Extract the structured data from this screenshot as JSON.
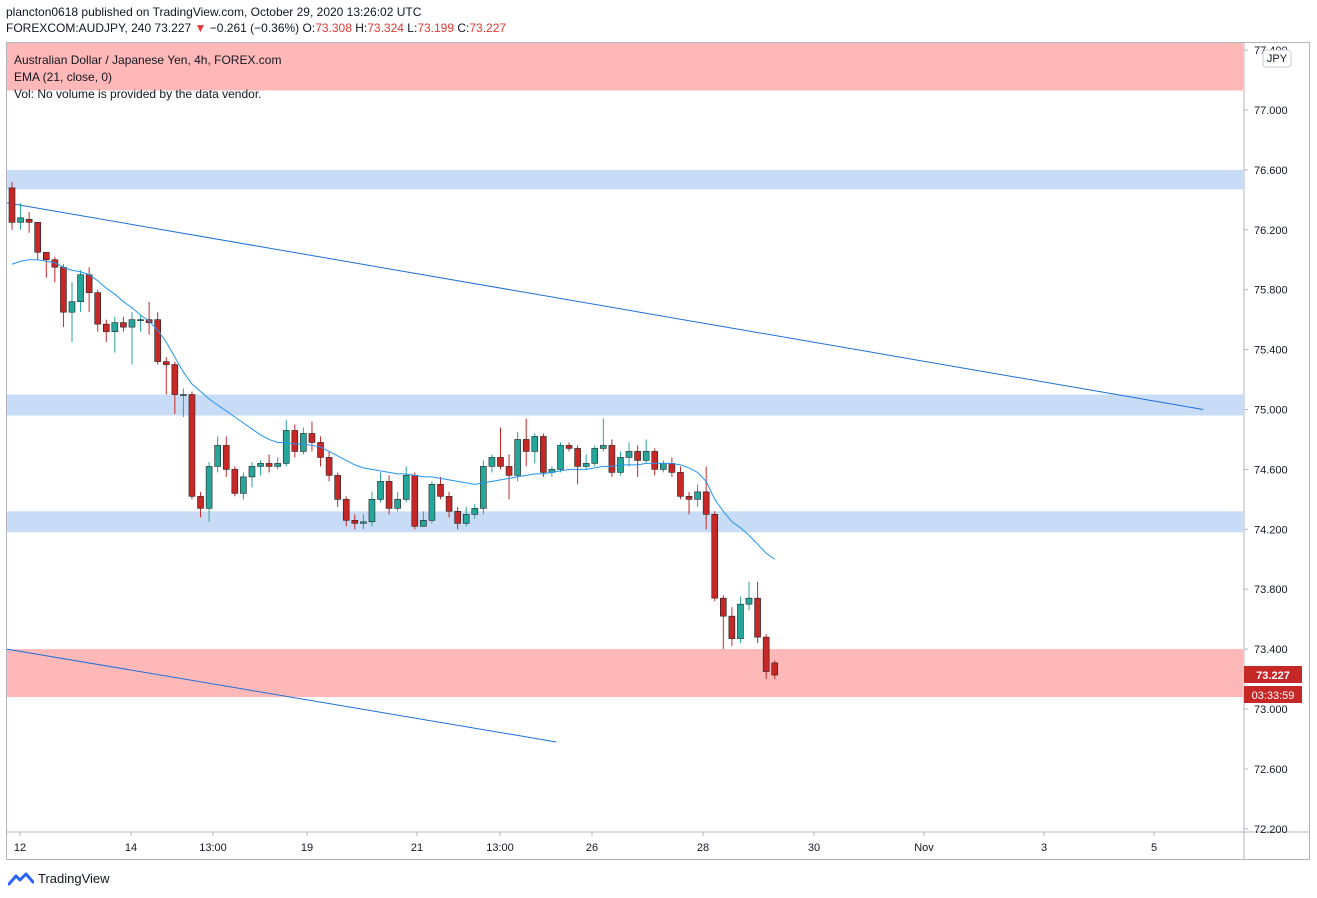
{
  "header": {
    "line1": "plancton0618 published on TradingView.com, October 29, 2020 13:26:02 UTC",
    "symbol": "FOREXCOM:AUDJPY, 240",
    "last": "73.227",
    "change_arrow": "▼",
    "change": "−0.261 (−0.36%)",
    "o_label": "O:",
    "o": "73.308",
    "h_label": "H:",
    "h": "73.324",
    "l_label": "L:",
    "l": "73.199",
    "c_label": "C:",
    "c": "73.227"
  },
  "legend": {
    "title": "Australian Dollar / Japanese Yen, 4h, FOREX.com",
    "ema": "EMA (21, close, 0)",
    "vol": "Vol: No volume is provided by the data vendor."
  },
  "currency_badge": "JPY",
  "price_label": "73.227",
  "countdown_label": "03:33:59",
  "brand": "TradingView",
  "colors": {
    "up": "#26a69a",
    "down": "#c62828",
    "ema": "#2196f3",
    "trendline": "#1e6fd9",
    "zone_red": "#ffb8b8",
    "zone_blue": "#c9dcf7",
    "price_tag": "#c62828"
  },
  "chart_data": {
    "type": "candlestick",
    "y_ticks": [
      "77.400",
      "77.000",
      "76.600",
      "76.200",
      "75.800",
      "75.400",
      "75.000",
      "74.600",
      "74.200",
      "73.800",
      "73.400",
      "73.000",
      "72.600",
      "72.200"
    ],
    "x_ticks": [
      "12",
      "14",
      "13:00",
      "19",
      "21",
      "13:00",
      "26",
      "28",
      "30",
      "Nov",
      "3",
      "5"
    ],
    "ylim": [
      72.2,
      77.4
    ],
    "zones": [
      {
        "color": "red",
        "from": 77.13,
        "to": 77.47
      },
      {
        "color": "blue",
        "from": 76.47,
        "to": 76.6
      },
      {
        "color": "blue",
        "from": 74.96,
        "to": 75.1
      },
      {
        "color": "blue",
        "from": 74.18,
        "to": 74.32
      },
      {
        "color": "red",
        "from": 73.08,
        "to": 73.4
      }
    ],
    "trendlines": [
      {
        "from": [
          0,
          76.38
        ],
        "to": [
          139,
          75.0
        ]
      },
      {
        "from": [
          0,
          73.4
        ],
        "to": [
          63.5,
          72.78
        ]
      }
    ],
    "candles": [
      [
        76.48,
        76.25,
        76.52,
        76.2
      ],
      [
        76.25,
        76.28,
        76.38,
        76.2
      ],
      [
        76.27,
        76.25,
        76.32,
        76.18
      ],
      [
        76.25,
        76.05,
        76.25,
        76.0
      ],
      [
        76.05,
        76.0,
        76.05,
        75.88
      ],
      [
        76.0,
        75.95,
        76.02,
        75.85
      ],
      [
        75.95,
        75.65,
        75.97,
        75.55
      ],
      [
        75.65,
        75.72,
        75.85,
        75.45
      ],
      [
        75.72,
        75.9,
        75.93,
        75.65
      ],
      [
        75.9,
        75.78,
        75.95,
        75.65
      ],
      [
        75.78,
        75.57,
        75.8,
        75.52
      ],
      [
        75.57,
        75.52,
        75.6,
        75.45
      ],
      [
        75.52,
        75.58,
        75.62,
        75.38
      ],
      [
        75.58,
        75.55,
        75.62,
        75.52
      ],
      [
        75.55,
        75.6,
        75.65,
        75.3
      ],
      [
        75.6,
        75.6,
        75.63,
        75.52
      ],
      [
        75.6,
        75.58,
        75.72,
        75.5
      ],
      [
        75.6,
        75.32,
        75.65,
        75.3
      ],
      [
        75.32,
        75.3,
        75.35,
        75.1
      ],
      [
        75.3,
        75.1,
        75.32,
        74.97
      ],
      [
        75.1,
        75.1,
        75.14,
        74.95
      ],
      [
        75.1,
        74.42,
        75.12,
        74.4
      ],
      [
        74.42,
        74.34,
        74.45,
        74.28
      ],
      [
        74.34,
        74.62,
        74.65,
        74.25
      ],
      [
        74.62,
        74.76,
        74.82,
        74.58
      ],
      [
        74.76,
        74.6,
        74.82,
        74.55
      ],
      [
        74.6,
        74.44,
        74.62,
        74.42
      ],
      [
        74.44,
        74.55,
        74.58,
        74.4
      ],
      [
        74.55,
        74.62,
        74.65,
        74.48
      ],
      [
        74.62,
        74.64,
        74.66,
        74.56
      ],
      [
        74.64,
        74.62,
        74.7,
        74.58
      ],
      [
        74.62,
        74.64,
        74.68,
        74.6
      ],
      [
        74.64,
        74.86,
        74.93,
        74.62
      ],
      [
        74.86,
        74.72,
        74.9,
        74.68
      ],
      [
        74.72,
        74.84,
        74.88,
        74.7
      ],
      [
        74.84,
        74.78,
        74.92,
        74.72
      ],
      [
        74.78,
        74.68,
        74.82,
        74.62
      ],
      [
        74.68,
        74.56,
        74.72,
        74.52
      ],
      [
        74.56,
        74.4,
        74.58,
        74.35
      ],
      [
        74.4,
        74.26,
        74.42,
        74.22
      ],
      [
        74.26,
        74.24,
        74.3,
        74.2
      ],
      [
        74.24,
        74.25,
        74.3,
        74.2
      ],
      [
        74.25,
        74.4,
        74.45,
        74.22
      ],
      [
        74.4,
        74.52,
        74.58,
        74.38
      ],
      [
        74.52,
        74.34,
        74.56,
        74.3
      ],
      [
        74.34,
        74.4,
        74.45,
        74.32
      ],
      [
        74.4,
        74.56,
        74.62,
        74.38
      ],
      [
        74.56,
        74.22,
        74.58,
        74.2
      ],
      [
        74.22,
        74.26,
        74.32,
        74.22
      ],
      [
        74.26,
        74.5,
        74.52,
        74.24
      ],
      [
        74.5,
        74.42,
        74.55,
        74.4
      ],
      [
        74.42,
        74.32,
        74.45,
        74.28
      ],
      [
        74.32,
        74.24,
        74.35,
        74.2
      ],
      [
        74.24,
        74.3,
        74.35,
        74.22
      ],
      [
        74.3,
        74.34,
        74.37,
        74.27
      ],
      [
        74.34,
        74.62,
        74.66,
        74.3
      ],
      [
        74.62,
        74.68,
        74.7,
        74.58
      ],
      [
        74.68,
        74.62,
        74.88,
        74.6
      ],
      [
        74.62,
        74.56,
        74.7,
        74.4
      ],
      [
        74.56,
        74.8,
        74.85,
        74.52
      ],
      [
        74.8,
        74.72,
        74.94,
        74.62
      ],
      [
        74.72,
        74.82,
        74.84,
        74.64
      ],
      [
        74.82,
        74.58,
        74.84,
        74.55
      ],
      [
        74.58,
        74.6,
        74.62,
        74.55
      ],
      [
        74.6,
        74.76,
        74.78,
        74.58
      ],
      [
        74.76,
        74.74,
        74.78,
        74.72
      ],
      [
        74.74,
        74.62,
        74.76,
        74.5
      ],
      [
        74.62,
        74.64,
        74.7,
        74.6
      ],
      [
        74.64,
        74.74,
        74.76,
        74.62
      ],
      [
        74.74,
        74.76,
        74.94,
        74.72
      ],
      [
        74.76,
        74.58,
        74.8,
        74.55
      ],
      [
        74.58,
        74.68,
        74.72,
        74.56
      ],
      [
        74.68,
        74.72,
        74.78,
        74.62
      ],
      [
        74.72,
        74.66,
        74.76,
        74.55
      ],
      [
        74.66,
        74.72,
        74.8,
        74.64
      ],
      [
        74.72,
        74.6,
        74.74,
        74.56
      ],
      [
        74.6,
        74.64,
        74.66,
        74.58
      ],
      [
        74.64,
        74.58,
        74.68,
        74.55
      ],
      [
        74.58,
        74.42,
        74.62,
        74.4
      ],
      [
        74.42,
        74.4,
        74.45,
        74.3
      ],
      [
        74.4,
        74.45,
        74.5,
        74.35
      ],
      [
        74.45,
        74.3,
        74.62,
        74.2
      ],
      [
        74.3,
        73.74,
        74.32,
        73.72
      ],
      [
        73.74,
        73.62,
        73.76,
        73.4
      ],
      [
        73.62,
        73.47,
        73.68,
        73.42
      ],
      [
        73.47,
        73.7,
        73.75,
        73.44
      ],
      [
        73.7,
        73.74,
        73.85,
        73.66
      ],
      [
        73.74,
        73.48,
        73.85,
        73.44
      ],
      [
        73.48,
        73.25,
        73.5,
        73.2
      ],
      [
        73.308,
        73.227,
        73.324,
        73.199
      ]
    ],
    "ema_series": [
      75.97,
      75.99,
      76.0,
      76.0,
      75.99,
      75.98,
      75.95,
      75.93,
      75.92,
      75.9,
      75.86,
      75.81,
      75.77,
      75.72,
      75.68,
      75.63,
      75.59,
      75.53,
      75.45,
      75.35,
      75.25,
      75.17,
      75.12,
      75.07,
      75.03,
      74.99,
      74.95,
      74.91,
      74.87,
      74.83,
      74.8,
      74.78,
      74.78,
      74.77,
      74.77,
      74.76,
      74.75,
      74.72,
      74.69,
      74.66,
      74.63,
      74.61,
      74.6,
      74.59,
      74.58,
      74.57,
      74.57,
      74.56,
      74.55,
      74.55,
      74.54,
      74.53,
      74.52,
      74.51,
      74.5,
      74.51,
      74.52,
      74.53,
      74.54,
      74.55,
      74.56,
      74.57,
      74.57,
      74.58,
      74.59,
      74.6,
      74.6,
      74.6,
      74.61,
      74.62,
      74.62,
      74.63,
      74.63,
      74.63,
      74.64,
      74.64,
      74.64,
      74.64,
      74.63,
      74.61,
      74.58,
      74.52,
      74.4,
      74.32,
      74.25,
      74.21,
      74.16,
      74.1,
      74.04,
      74.0
    ]
  }
}
